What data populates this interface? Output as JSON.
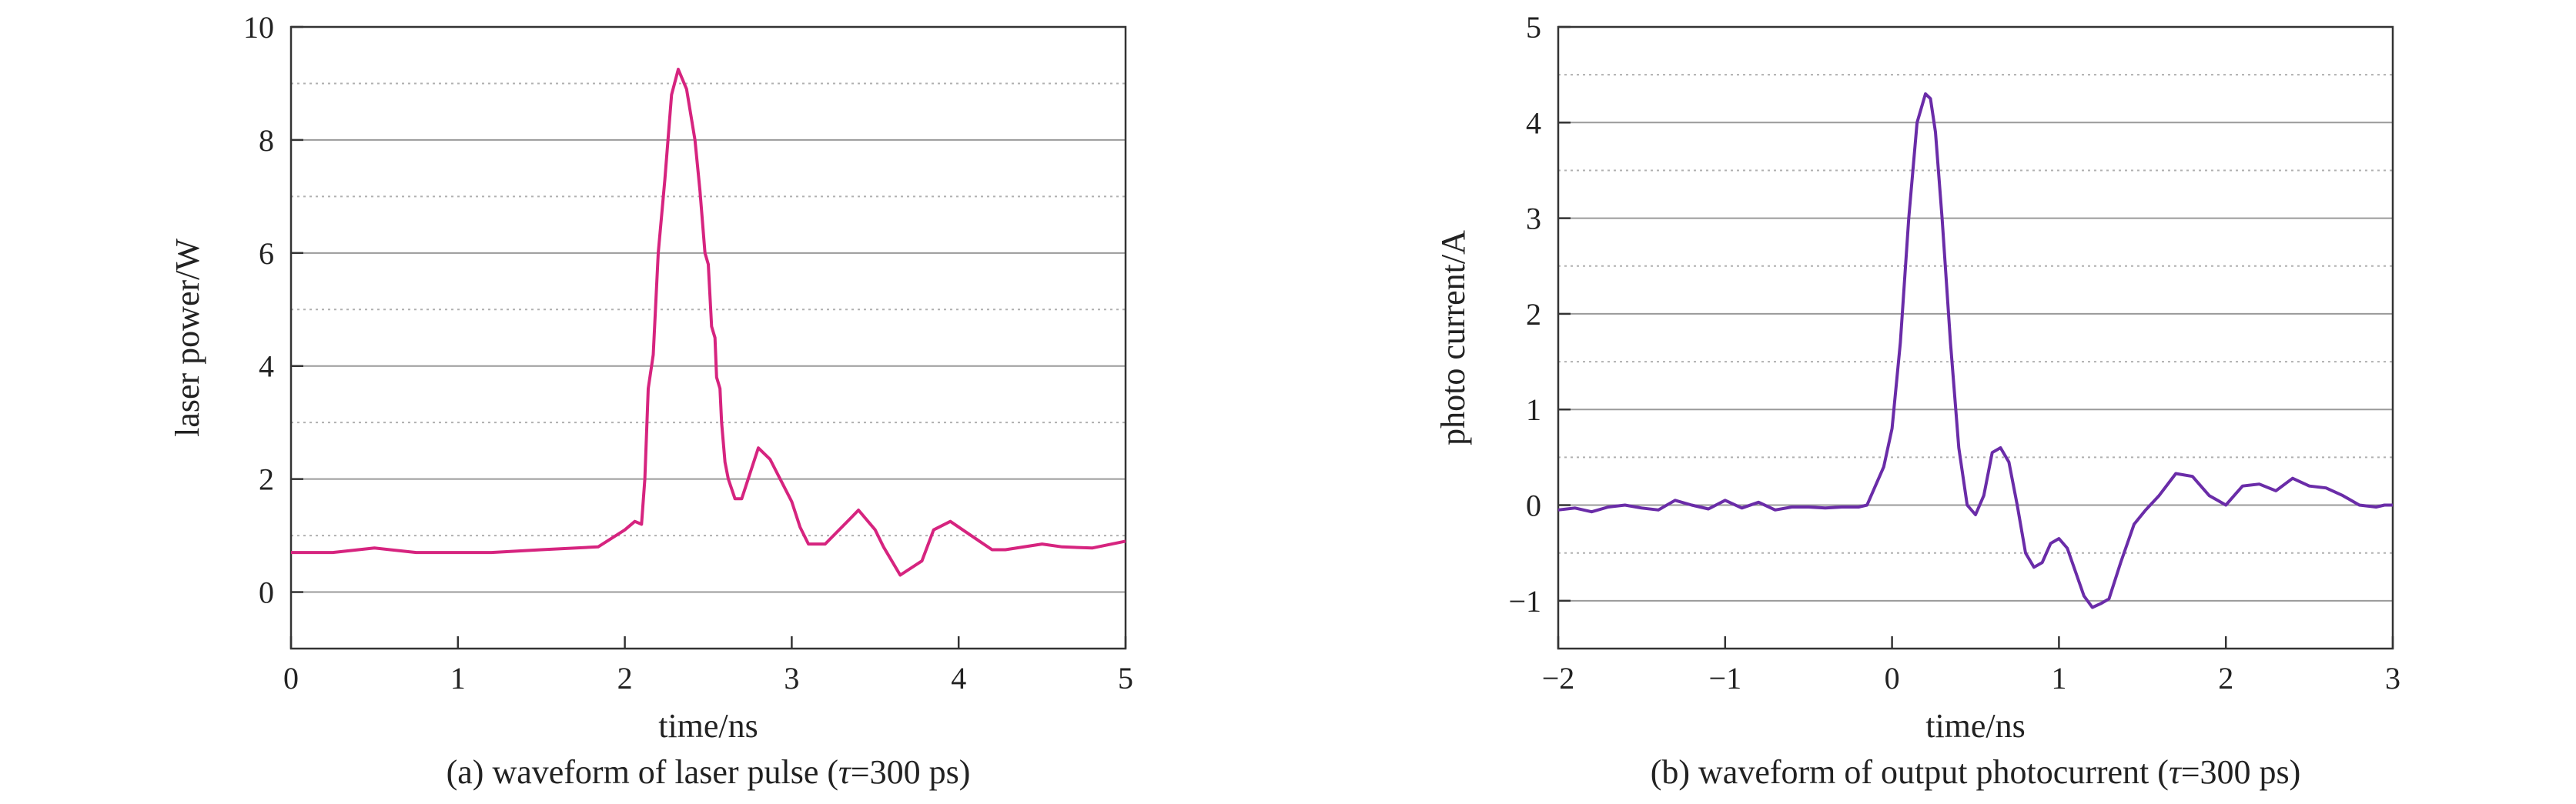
{
  "chart_data": [
    {
      "type": "line",
      "panel": "a",
      "caption_main": "(a) waveform of laser pulse (",
      "caption_sym": "τ",
      "caption_tail": "=300 ps)",
      "xlabel": "time/ns",
      "ylabel": "laser power/W",
      "xlim": [
        0,
        5
      ],
      "ylim": [
        -1,
        10
      ],
      "xticks": [
        0,
        1,
        2,
        3,
        4,
        5
      ],
      "yticks": [
        0,
        2,
        4,
        6,
        8,
        10
      ],
      "grid": "horizontal solid at major ticks, dotted at minor ticks",
      "series_color": "#d6247f",
      "series": [
        {
          "x": [
            0,
            0.25,
            0.5,
            0.75,
            1.0,
            1.2,
            1.5,
            1.84,
            2.0,
            2.06,
            2.1,
            2.12,
            2.14,
            2.17,
            2.2,
            2.24,
            2.28,
            2.32,
            2.37,
            2.42,
            2.45,
            2.48,
            2.5,
            2.52,
            2.54,
            2.55,
            2.57,
            2.58,
            2.6,
            2.62,
            2.66,
            2.7,
            2.75,
            2.8,
            2.87,
            3.0,
            3.05,
            3.1,
            3.2,
            3.35,
            3.4,
            3.5,
            3.55,
            3.65,
            3.78,
            3.85,
            3.95,
            4.1,
            4.2,
            4.28,
            4.5,
            4.62,
            4.8,
            5.0
          ],
          "y": [
            0.7,
            0.7,
            0.78,
            0.7,
            0.7,
            0.7,
            0.75,
            0.8,
            1.1,
            1.25,
            1.2,
            2.0,
            3.6,
            4.2,
            6.0,
            7.3,
            8.8,
            9.25,
            8.9,
            8.0,
            7.1,
            6.0,
            5.8,
            4.7,
            4.5,
            3.8,
            3.6,
            3.0,
            2.3,
            2.0,
            1.65,
            1.65,
            2.1,
            2.55,
            2.35,
            1.6,
            1.15,
            0.85,
            0.85,
            1.3,
            1.45,
            1.1,
            0.8,
            0.3,
            0.55,
            1.1,
            1.25,
            0.95,
            0.75,
            0.75,
            0.85,
            0.8,
            0.78,
            0.9
          ]
        }
      ]
    },
    {
      "type": "line",
      "panel": "b",
      "caption_main": "(b) waveform of output photocurrent (",
      "caption_sym": "τ",
      "caption_tail": "=300 ps)",
      "xlabel": "time/ns",
      "ylabel": "photo current/A",
      "xlim": [
        -2,
        3
      ],
      "ylim": [
        -1.5,
        5
      ],
      "xticks": [
        -2,
        -1,
        0,
        1,
        2,
        3
      ],
      "xtick_labels": [
        "−2",
        "−1",
        "0",
        "1",
        "2",
        "3"
      ],
      "yticks": [
        -1,
        0,
        1,
        2,
        3,
        4,
        5
      ],
      "ytick_labels": [
        "−1",
        "0",
        "1",
        "2",
        "3",
        "4",
        "5"
      ],
      "grid": "horizontal solid at major ticks, dotted at minor ticks",
      "series_color": "#6a2ca8",
      "series": [
        {
          "x": [
            -2.0,
            -1.9,
            -1.8,
            -1.7,
            -1.6,
            -1.5,
            -1.4,
            -1.3,
            -1.2,
            -1.1,
            -1.0,
            -0.9,
            -0.8,
            -0.7,
            -0.6,
            -0.5,
            -0.4,
            -0.3,
            -0.2,
            -0.15,
            -0.1,
            -0.05,
            0.0,
            0.05,
            0.1,
            0.15,
            0.2,
            0.23,
            0.26,
            0.3,
            0.35,
            0.4,
            0.45,
            0.5,
            0.55,
            0.6,
            0.65,
            0.7,
            0.75,
            0.8,
            0.85,
            0.9,
            0.95,
            1.0,
            1.05,
            1.1,
            1.15,
            1.2,
            1.25,
            1.3,
            1.37,
            1.45,
            1.52,
            1.6,
            1.7,
            1.8,
            1.9,
            1.95,
            2.0,
            2.05,
            2.1,
            2.2,
            2.3,
            2.4,
            2.5,
            2.6,
            2.7,
            2.8,
            2.9,
            2.95,
            3.0
          ],
          "y": [
            -0.05,
            -0.03,
            -0.07,
            -0.02,
            0.0,
            -0.03,
            -0.05,
            0.05,
            0.0,
            -0.04,
            0.05,
            -0.03,
            0.03,
            -0.05,
            -0.02,
            -0.02,
            -0.03,
            -0.02,
            -0.02,
            0.0,
            0.2,
            0.4,
            0.8,
            1.7,
            3.0,
            4.0,
            4.3,
            4.25,
            3.9,
            3.0,
            1.7,
            0.6,
            0.0,
            -0.1,
            0.1,
            0.55,
            0.6,
            0.45,
            0.0,
            -0.5,
            -0.65,
            -0.6,
            -0.4,
            -0.35,
            -0.45,
            -0.7,
            -0.95,
            -1.07,
            -1.03,
            -0.98,
            -0.6,
            -0.2,
            -0.05,
            0.1,
            0.33,
            0.3,
            0.1,
            0.05,
            0.0,
            0.1,
            0.2,
            0.22,
            0.15,
            0.28,
            0.2,
            0.18,
            0.1,
            0.0,
            -0.02,
            0.0,
            0.0
          ]
        }
      ]
    }
  ]
}
